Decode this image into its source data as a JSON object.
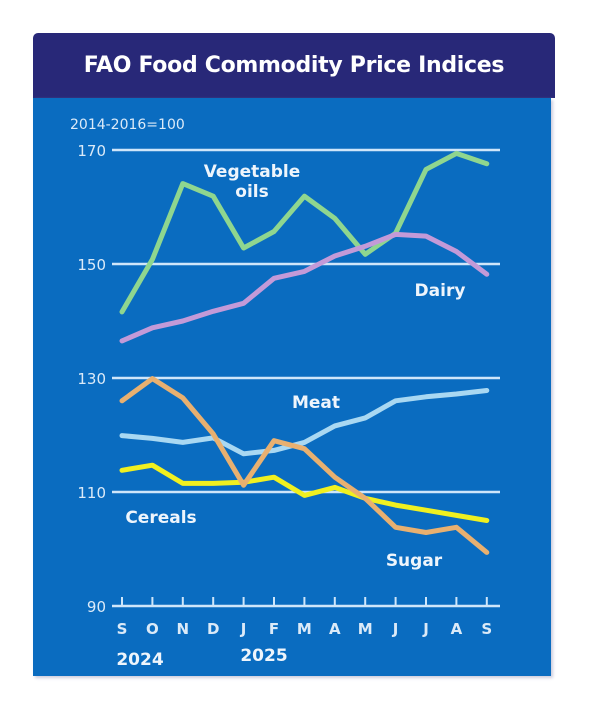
{
  "chart_data": {
    "type": "line",
    "title": "FAO Food Commodity Price Indices",
    "subtitle": "2014-2016=100",
    "xlabel": "",
    "ylabel": "",
    "ylim": [
      90,
      170
    ],
    "yticks": [
      "90",
      "110",
      "130",
      "150",
      "170"
    ],
    "yticks_values": [
      90,
      110,
      130,
      150,
      170
    ],
    "grid": true,
    "categories": [
      "S",
      "O",
      "N",
      "D",
      "J",
      "F",
      "M",
      "A",
      "M",
      "J",
      "J",
      "A",
      "S"
    ],
    "year_labels": [
      "2024",
      "2025"
    ],
    "series": [
      {
        "name": "Vegetable",
        "name2": "oils",
        "color": "#8fd68f",
        "values": [
          141.6,
          150.8,
          164.1,
          161.9,
          152.8,
          155.7,
          161.9,
          158.0,
          151.7,
          155.4,
          166.6,
          169.4,
          167.6
        ]
      },
      {
        "name": "Dairy",
        "color": "#c39ad8",
        "values": [
          136.5,
          138.8,
          140.0,
          141.7,
          143.1,
          147.5,
          148.7,
          151.4,
          153.1,
          155.2,
          154.9,
          152.2,
          148.2
        ]
      },
      {
        "name": "Meat",
        "color": "#a9d8f2",
        "values": [
          119.9,
          119.4,
          118.7,
          119.5,
          116.7,
          117.3,
          118.7,
          121.6,
          123.0,
          126.0,
          126.7,
          127.2,
          127.8
        ]
      },
      {
        "name": "Cereals",
        "color": "#f0f020",
        "values": [
          113.8,
          114.7,
          111.5,
          111.5,
          111.7,
          112.6,
          109.4,
          110.8,
          108.9,
          107.7,
          106.8,
          105.9,
          105.0
        ]
      },
      {
        "name": "Sugar",
        "color": "#e8b070",
        "values": [
          126.0,
          129.9,
          126.5,
          120.2,
          111.2,
          119.0,
          117.6,
          112.6,
          108.9,
          103.8,
          102.9,
          103.8,
          99.4
        ]
      }
    ]
  }
}
